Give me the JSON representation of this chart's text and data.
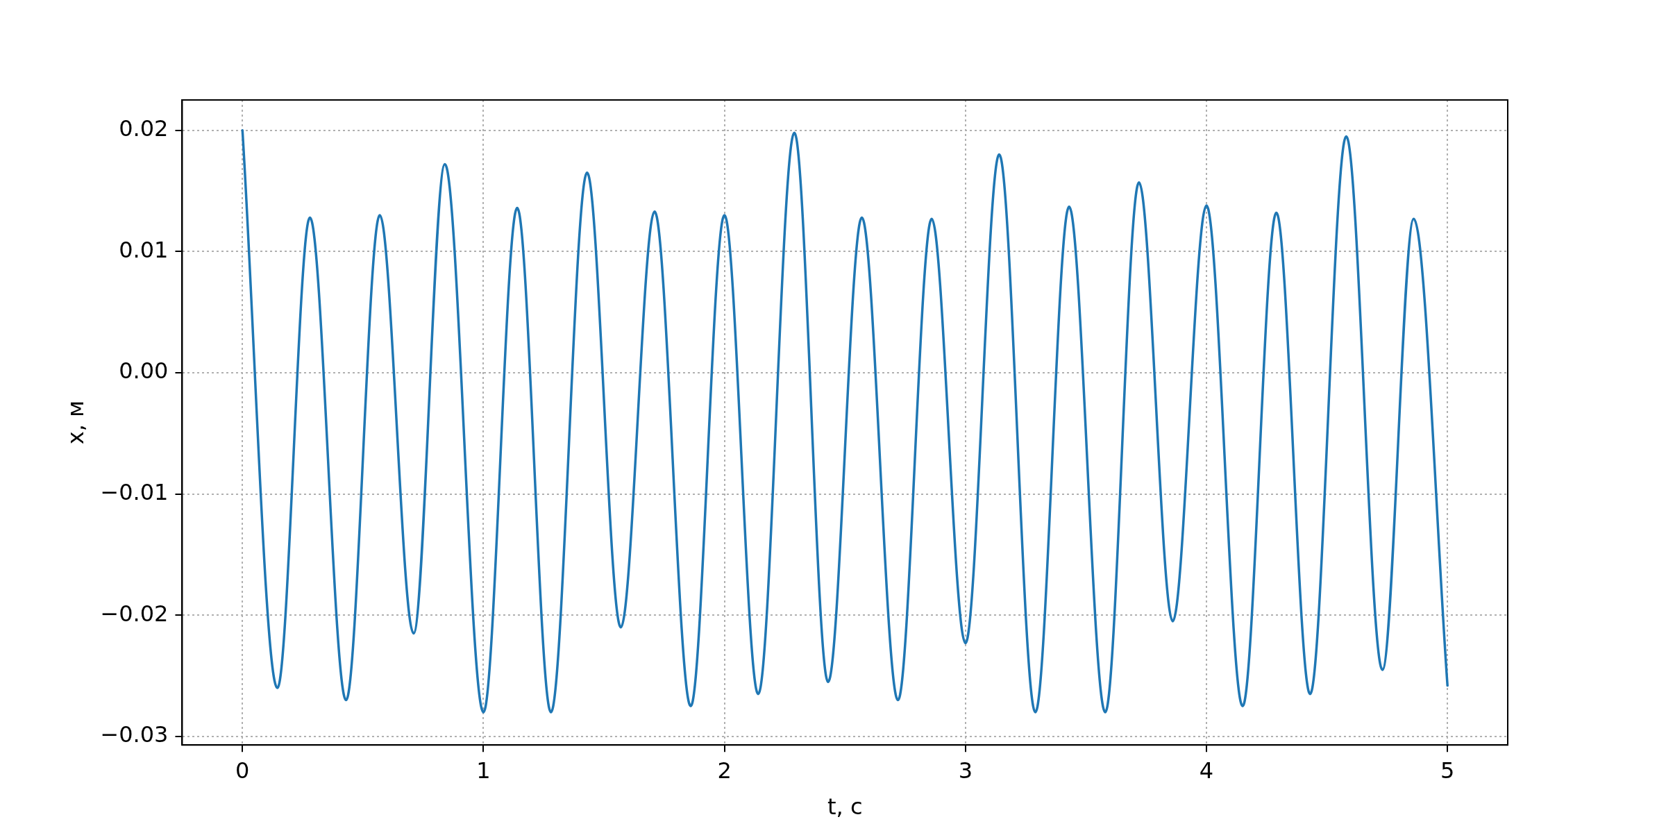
{
  "chart_data": {
    "type": "line",
    "xlabel": "t, с",
    "ylabel": "x, м",
    "x": [
      0,
      0.145,
      0.28,
      0.43,
      0.57,
      0.71,
      0.84,
      1.0,
      1.14,
      1.28,
      1.43,
      1.57,
      1.71,
      1.86,
      2.0,
      2.14,
      2.29,
      2.43,
      2.57,
      2.72,
      2.86,
      3.0,
      3.14,
      3.29,
      3.43,
      3.58,
      3.72,
      3.86,
      4.0,
      4.15,
      4.29,
      4.43,
      4.58,
      4.73,
      4.86,
      5.0
    ],
    "series": [
      {
        "color": "#1f77b4",
        "values": [
          0.02,
          -0.026,
          0.0128,
          -0.027,
          0.013,
          -0.0215,
          0.0172,
          -0.028,
          0.0136,
          -0.028,
          0.0165,
          -0.021,
          0.0133,
          -0.0275,
          0.013,
          -0.0265,
          0.0198,
          -0.0255,
          0.0128,
          -0.027,
          0.0127,
          -0.0223,
          0.018,
          -0.028,
          0.0137,
          -0.028,
          0.0157,
          -0.0205,
          0.0138,
          -0.0275,
          0.0132,
          -0.0265,
          0.0195,
          -0.0245,
          0.0127,
          -0.0258
        ]
      }
    ],
    "xlim": [
      -0.25,
      5.25
    ],
    "xticks": [
      0,
      1,
      2,
      3,
      4,
      5
    ],
    "ylim": [
      -0.0307,
      0.0225
    ],
    "yticks": [
      {
        "value": -0.03,
        "label": "−0.03"
      },
      {
        "value": -0.02,
        "label": "−0.02"
      },
      {
        "value": -0.01,
        "label": "−0.01"
      },
      {
        "value": 0,
        "label": "0.00"
      },
      {
        "value": 0.01,
        "label": "0.01"
      },
      {
        "value": 0.02,
        "label": "0.02"
      }
    ],
    "grid": true,
    "legend": false,
    "marker": "none",
    "line_style": "solid"
  }
}
